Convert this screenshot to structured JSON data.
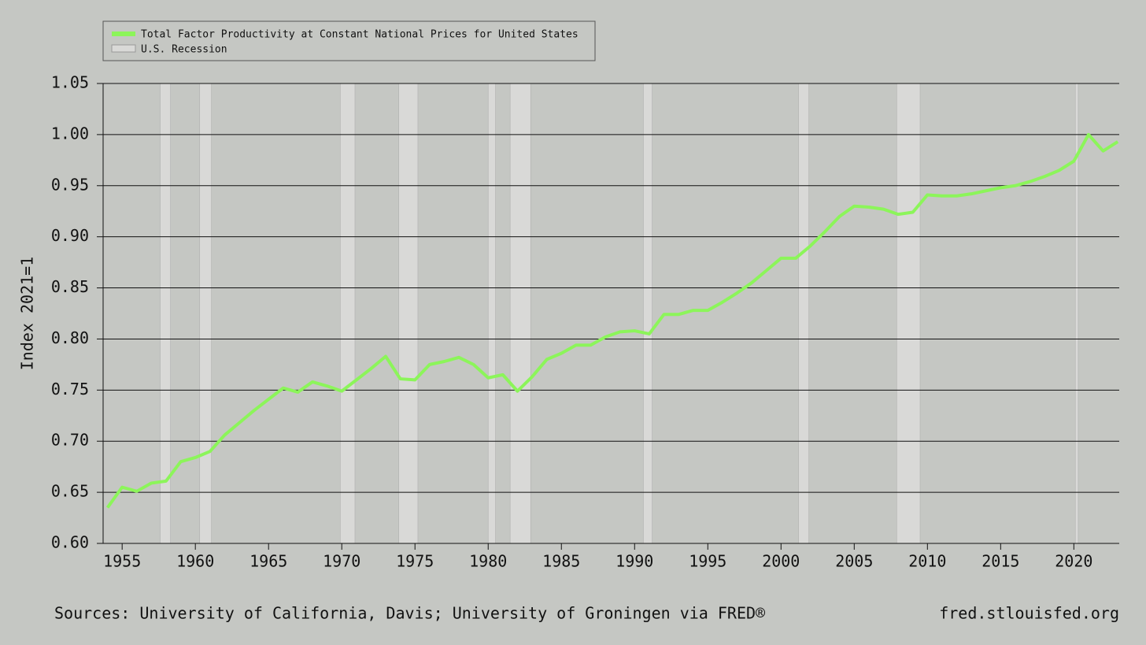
{
  "chart_data": {
    "type": "line",
    "y_label": "Index 2021=1",
    "source": "Sources: University of California, Davis; University of Groningen via FRED®",
    "site": "fred.stlouisfed.org",
    "x": [
      1954,
      1955,
      1956,
      1957,
      1958,
      1959,
      1960,
      1961,
      1962,
      1963,
      1964,
      1965,
      1966,
      1967,
      1968,
      1969,
      1970,
      1971,
      1972,
      1973,
      1974,
      1975,
      1976,
      1977,
      1978,
      1979,
      1980,
      1981,
      1982,
      1983,
      1984,
      1985,
      1986,
      1987,
      1988,
      1989,
      1990,
      1991,
      1992,
      1993,
      1994,
      1995,
      1996,
      1997,
      1998,
      1999,
      2000,
      2001,
      2002,
      2003,
      2004,
      2005,
      2006,
      2007,
      2008,
      2009,
      2010,
      2011,
      2012,
      2013,
      2014,
      2015,
      2016,
      2017,
      2018,
      2019,
      2020,
      2021,
      2022,
      2023
    ],
    "series": [
      {
        "name": "Total Factor Productivity at Constant National Prices for United States",
        "color": "#8cf55a",
        "values": [
          0.635,
          0.655,
          0.651,
          0.659,
          0.661,
          0.68,
          0.684,
          0.69,
          0.706,
          0.718,
          0.73,
          0.741,
          0.752,
          0.748,
          0.758,
          0.754,
          0.749,
          0.76,
          0.771,
          0.783,
          0.761,
          0.76,
          0.775,
          0.778,
          0.782,
          0.775,
          0.762,
          0.765,
          0.749,
          0.763,
          0.78,
          0.786,
          0.794,
          0.794,
          0.802,
          0.807,
          0.808,
          0.805,
          0.824,
          0.824,
          0.828,
          0.828,
          0.836,
          0.845,
          0.855,
          0.867,
          0.879,
          0.879,
          0.891,
          0.905,
          0.92,
          0.93,
          0.929,
          0.927,
          0.922,
          0.924,
          0.941,
          0.94,
          0.94,
          0.942,
          0.945,
          0.948,
          0.95,
          0.954,
          0.959,
          0.965,
          0.974,
          1.0,
          0.984,
          0.993
        ]
      }
    ],
    "recessions": {
      "name": "U.S. Recession",
      "color": "#d9d9d7",
      "start": [
        1957.6,
        1960.3,
        1969.9,
        1973.9,
        1980.0,
        1981.5,
        1990.6,
        2001.2,
        2007.9,
        2020.1
      ],
      "end": [
        1958.3,
        1961.1,
        1970.9,
        1975.2,
        1980.5,
        1982.9,
        1991.2,
        2001.9,
        2009.5,
        2020.3
      ]
    },
    "xlim": [
      1953.7,
      2023.1
    ],
    "xticks": [
      1955,
      1960,
      1965,
      1970,
      1975,
      1980,
      1985,
      1990,
      1995,
      2000,
      2005,
      2010,
      2015,
      2020
    ],
    "ylim": [
      0.6,
      1.05
    ],
    "yticks": [
      {
        "value": 0.6,
        "label": "0.60"
      },
      {
        "value": 0.65,
        "label": "0.65"
      },
      {
        "value": 0.7,
        "label": "0.70"
      },
      {
        "value": 0.75,
        "label": "0.75"
      },
      {
        "value": 0.8,
        "label": "0.80"
      },
      {
        "value": 0.85,
        "label": "0.85"
      },
      {
        "value": 0.9,
        "label": "0.90"
      },
      {
        "value": 0.95,
        "label": "0.95"
      },
      {
        "value": 1.0,
        "label": "1.00"
      },
      {
        "value": 1.05,
        "label": "1.05"
      }
    ],
    "grid": true
  }
}
